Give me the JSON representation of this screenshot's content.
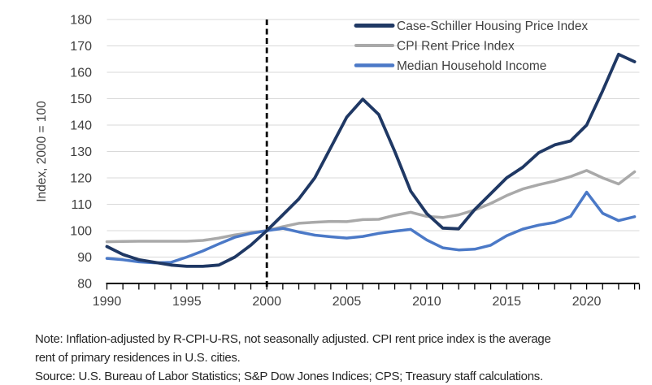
{
  "chart": {
    "y_axis_label": "Index, 2000 = 100",
    "background": "#ffffff",
    "gridline_color": "#d9d9d9",
    "axis_color": "#000000",
    "tick_label_color": "#404040",
    "dashed_line_color": "#000000"
  },
  "chart_data": {
    "type": "line",
    "title": "",
    "xlabel": "",
    "ylabel": "Index, 2000 = 100",
    "xlim": [
      1990,
      2023.3
    ],
    "ylim": [
      80,
      180
    ],
    "yticks": [
      80,
      90,
      100,
      110,
      120,
      130,
      140,
      150,
      160,
      170,
      180
    ],
    "xticks": [
      1990,
      1995,
      2000,
      2005,
      2010,
      2015,
      2020
    ],
    "grid": "horizontal",
    "legend_position": "top-right",
    "reference_line": {
      "x": 2000,
      "style": "dashed"
    },
    "x": [
      1990,
      1991,
      1992,
      1993,
      1994,
      1995,
      1996,
      1997,
      1998,
      1999,
      2000,
      2001,
      2002,
      2003,
      2004,
      2005,
      2006,
      2007,
      2008,
      2009,
      2010,
      2011,
      2012,
      2013,
      2014,
      2015,
      2016,
      2017,
      2018,
      2019,
      2020,
      2021,
      2022,
      2023
    ],
    "series": [
      {
        "name": "Case-Schiller Housing Price Index",
        "color": "#1f3864",
        "width": 3.8,
        "values": [
          94,
          91,
          89,
          88,
          87,
          86.5,
          86.5,
          87,
          90,
          94.5,
          100,
          106,
          112,
          120,
          131.5,
          143,
          149.8,
          144,
          130,
          115,
          106.5,
          101,
          100.7,
          108,
          114,
          120,
          124,
          129.5,
          132.5,
          134,
          140,
          153,
          166.8,
          164
        ]
      },
      {
        "name": "CPI Rent Price Index",
        "color": "#a9a9a9",
        "width": 3.5,
        "values": [
          95.8,
          95.9,
          96,
          96,
          96,
          96,
          96.3,
          97.2,
          98.4,
          99.3,
          100,
          101.5,
          102.8,
          103.2,
          103.5,
          103.4,
          104.2,
          104.3,
          105.8,
          107,
          105.4,
          105,
          106,
          107.8,
          110.3,
          113.3,
          115.8,
          117.4,
          118.8,
          120.5,
          122.8,
          120,
          117.7,
          122.3
        ]
      },
      {
        "name": "Median Household Income",
        "color": "#4b79c7",
        "width": 3.5,
        "values": [
          89.5,
          89,
          88.2,
          87.8,
          88,
          90,
          92.3,
          95,
          97.5,
          99,
          100,
          100.9,
          99.5,
          98.3,
          97.7,
          97.2,
          97.8,
          99,
          99.8,
          100.5,
          96.5,
          93.5,
          92.7,
          93,
          94.5,
          98.1,
          100.6,
          102.1,
          103.1,
          105.4,
          114.6,
          106.6,
          103.8,
          105.3
        ]
      }
    ]
  },
  "note": {
    "lines": [
      "Note: Inflation-adjusted by R-CPI-U-RS, not seasonally adjusted. CPI rent price index is the average",
      "rent of primary residences in U.S. cities.",
      "Source: U.S. Bureau of Labor Statistics; S&P Dow Jones Indices; CPS; Treasury staff calculations."
    ]
  }
}
